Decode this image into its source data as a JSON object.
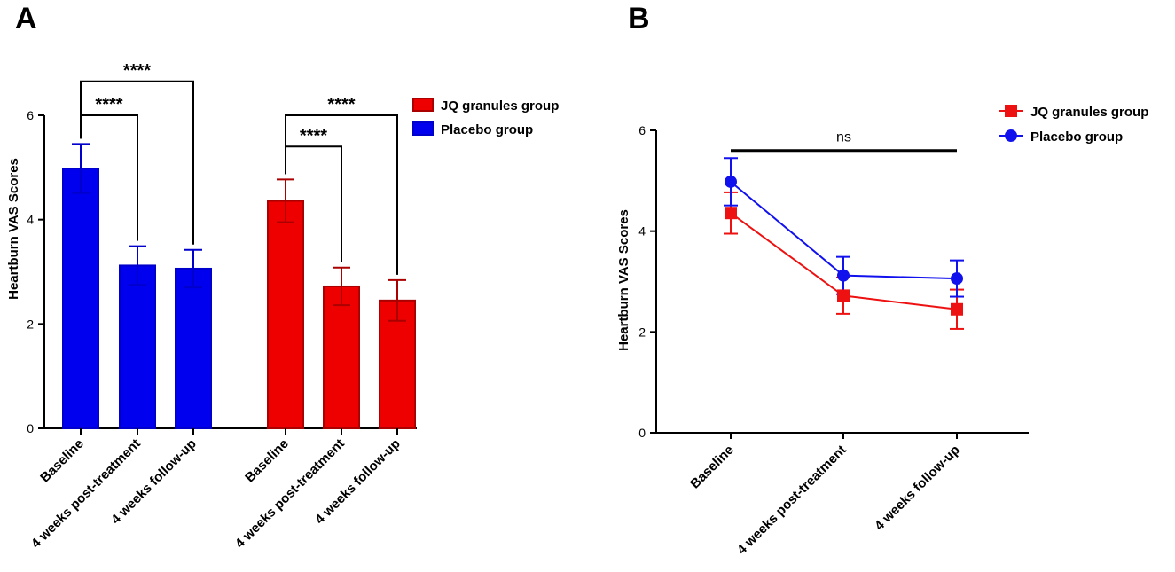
{
  "chart_data": [
    {
      "panel": "A",
      "type": "bar",
      "ylabel": "Heartburn VAS Scores",
      "xlabel": "",
      "ylim": [
        0,
        6
      ],
      "yticks": [
        0,
        2,
        4,
        6
      ],
      "legend": {
        "placement": "top-right"
      },
      "groups": [
        {
          "name": "Placebo group",
          "color": "#0000ee",
          "edge": "#0000cc",
          "categories": [
            "Baseline",
            "4 weeks post-treatment",
            "4 weeks follow-up"
          ],
          "values": [
            4.98,
            3.12,
            3.06
          ],
          "errors": [
            0.47,
            0.37,
            0.36
          ]
        },
        {
          "name": "JQ granules group",
          "color": "#ee0000",
          "edge": "#aa0000",
          "categories": [
            "Baseline",
            "4 weeks post-treatment",
            "4 weeks follow-up"
          ],
          "values": [
            4.36,
            2.72,
            2.45
          ],
          "errors": [
            0.41,
            0.36,
            0.39
          ]
        }
      ],
      "legend_order": [
        "JQ granules group",
        "Placebo group"
      ],
      "annotations": [
        {
          "group": 0,
          "from": 0,
          "to": 2,
          "text": "****",
          "y": 6.65
        },
        {
          "group": 0,
          "from": 0,
          "to": 1,
          "text": "****",
          "y": 6.0
        },
        {
          "group": 1,
          "from": 0,
          "to": 2,
          "text": "****",
          "y": 6.0
        },
        {
          "group": 1,
          "from": 0,
          "to": 1,
          "text": "****",
          "y": 5.4
        }
      ]
    },
    {
      "panel": "B",
      "type": "line",
      "ylabel": "Heartburn VAS Scores",
      "xlabel": "",
      "ylim": [
        0,
        6
      ],
      "yticks": [
        0,
        2,
        4,
        6
      ],
      "categories": [
        "Baseline",
        "4 weeks post-treatment",
        "4 weeks follow-up"
      ],
      "legend": {
        "placement": "top-right"
      },
      "series": [
        {
          "name": "JQ granules group",
          "color": "#ee1111",
          "marker": "square",
          "values": [
            4.36,
            2.72,
            2.45
          ],
          "errors": [
            0.41,
            0.36,
            0.39
          ]
        },
        {
          "name": "Placebo group",
          "color": "#1111ee",
          "marker": "circle",
          "values": [
            4.98,
            3.12,
            3.06
          ],
          "errors": [
            0.47,
            0.37,
            0.36
          ]
        }
      ],
      "annotations": [
        {
          "from": 0,
          "to": 2,
          "text": "ns",
          "y": 5.6
        }
      ]
    }
  ],
  "panel_labels": [
    "A",
    "B"
  ]
}
